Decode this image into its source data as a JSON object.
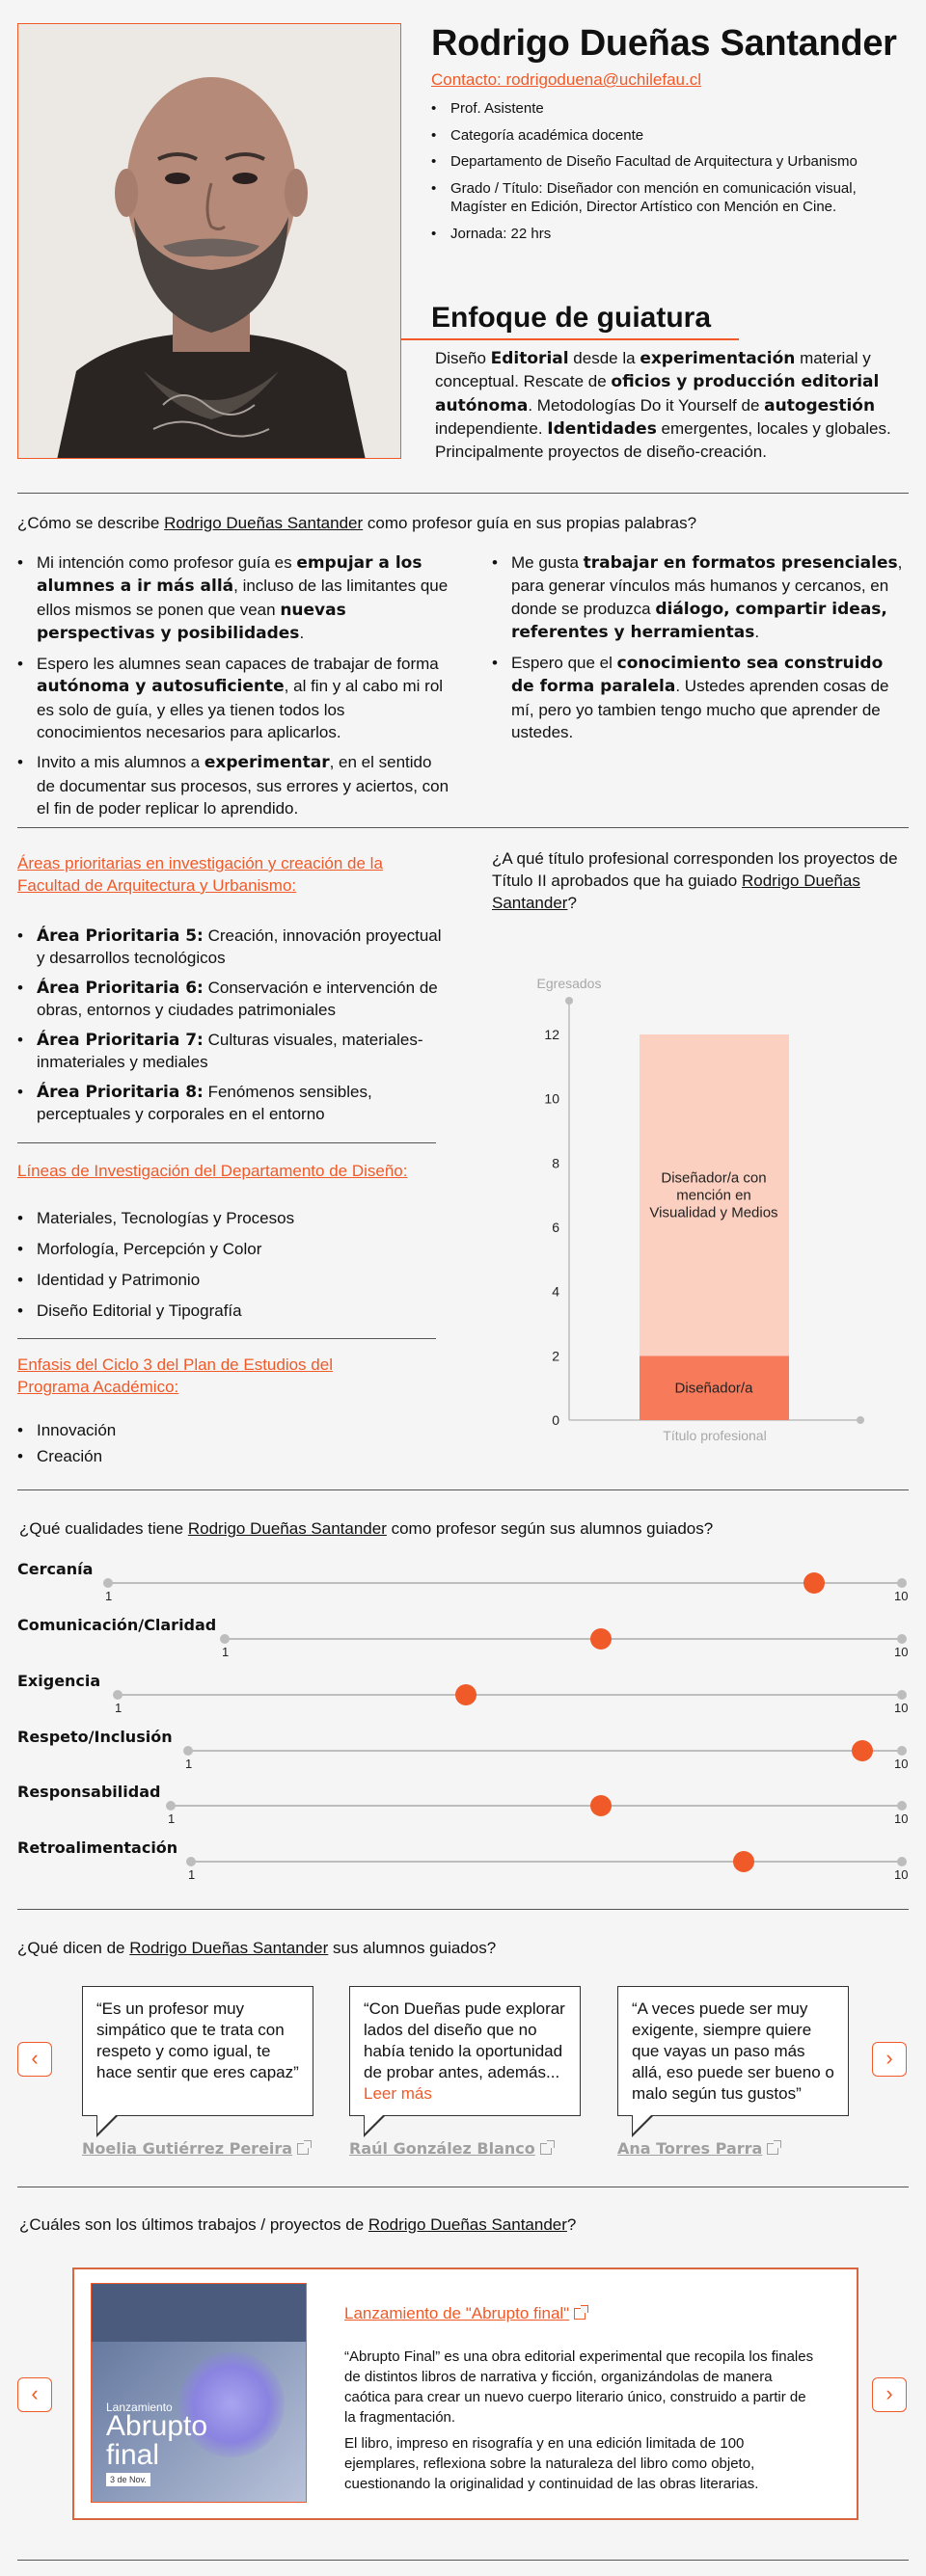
{
  "profile": {
    "name": "Rodrigo Dueñas Santander",
    "contact": "Contacto: rodrigoduena@uchilefau.cl",
    "items": [
      "Prof. Asistente",
      "Categoría académica docente",
      "Departamento de Diseño Facultad de Arquitectura y Urbanismo",
      "Grado / Título: Diseñador con mención en comunicación visual, Magíster en Edición, Director Artístico con Mención en Cine.",
      "Jornada: 22 hrs"
    ]
  },
  "focus": {
    "title": "Enfoque de guiatura",
    "t1": "Diseño ",
    "b1": "Editorial",
    "t2": " desde la ",
    "b2": "experimentación",
    "t3": " material y conceptual. Rescate de ",
    "b3": "oficios y producción editorial autónoma",
    "t4": ". Metodologías Do it Yourself de ",
    "b4": "autogestión",
    "t5": " independiente. ",
    "b5": "Identidades",
    "t6": " emergentes, locales y globales. Principalmente proyectos de diseño-creación."
  },
  "describe": {
    "q_pre": "¿Cómo se describe ",
    "q_name": "Rodrigo Dueñas Santander",
    "q_post": " como profesor guía en sus propias palabras?",
    "l1a": "Mi intención como profesor guía es ",
    "l1b": "empujar a los alumnes a ir más allá",
    "l1c": ", incluso de las limitantes que ellos mismos se ponen que vean ",
    "l1d": "nuevas perspectivas y posibilidades",
    "l1e": ".",
    "l2a": "Espero les alumnes sean capaces de trabajar de forma ",
    "l2b": "autónoma y autosuficiente",
    "l2c": ", al fin y al cabo mi rol es solo de guía, y elles ya tienen todos los conocimientos necesarios para aplicarlos.",
    "l3a": "Invito a mis alumnos a ",
    "l3b": "experimentar",
    "l3c": ", en el sentido de documentar sus procesos, sus errores y aciertos, con el fin de poder replicar lo aprendido.",
    "r1a": "Me gusta ",
    "r1b": "trabajar en formatos presenciales",
    "r1c": ", para generar vínculos más humanos y cercanos, en donde se produzca ",
    "r1d": "diálogo, compartir ideas, referentes y herramientas",
    "r1e": ".",
    "r2a": "Espero que el ",
    "r2b": "conocimiento sea construido de forma paralela",
    "r2c": ". Ustedes aprenden cosas de mí, pero yo tambien tengo mucho que aprender de ustedes."
  },
  "areas": {
    "title": "Áreas prioritarias en investigación y creación de la Facultad de Arquitectura y Urbanismo:",
    "items": [
      {
        "label": "Área Prioritaria 5:",
        "text": " Creación, innovación proyectual y desarrollos tecnológicos"
      },
      {
        "label": "Área Prioritaria 6:",
        "text": " Conservación e intervención de obras, entornos y ciudades patrimoniales"
      },
      {
        "label": "Área Prioritaria 7:",
        "text": " Culturas visuales, materiales-inmateriales y mediales"
      },
      {
        "label": "Área Prioritaria 8:",
        "text": " Fenómenos sensibles, perceptuales y corporales en el entorno"
      }
    ]
  },
  "lineas": {
    "title": "Líneas de Investigación del Departamento de Diseño:",
    "items": [
      "Materiales, Tecnologías y Procesos",
      "Morfología, Percepción y Color",
      "Identidad y Patrimonio",
      "Diseño Editorial y Tipografía"
    ]
  },
  "enfasis": {
    "title": "Enfasis del Ciclo 3 del Plan de Estudios del Programa Académico:",
    "items": [
      "Innovación",
      "Creación"
    ]
  },
  "titulo_q": {
    "pre": "¿A qué título profesional corresponden los proyectos de Título II aprobados que ha guiado ",
    "name": "Rodrigo Dueñas Santander",
    "post": "?"
  },
  "chart_data": {
    "type": "bar",
    "ylabel": "Egresados",
    "xlabel": "Título profesional",
    "ylim": [
      0,
      12
    ],
    "yticks": [
      0,
      2,
      4,
      6,
      8,
      10,
      12
    ],
    "stacked": true,
    "series": [
      {
        "name": "Diseñador/a",
        "value": 2,
        "color": "#f77b5b"
      },
      {
        "name": "Diseñador/a con mención en Visualidad y Medios",
        "value": 10,
        "color": "#fcd0c0"
      }
    ]
  },
  "qualities": {
    "q_pre": "¿Qué cualidades tiene ",
    "q_name": "Rodrigo Dueñas Santander",
    "q_post": " como profesor según sus alumnos guiados?",
    "min": "1",
    "max": "10",
    "items": [
      {
        "label": "Cercanía",
        "value": 9
      },
      {
        "label": "Comunicación/Claridad",
        "value": 6
      },
      {
        "label": "Exigencia",
        "value": 5
      },
      {
        "label": "Respeto/Inclusión",
        "value": 9.5
      },
      {
        "label": "Responsabilidad",
        "value": 6.3
      },
      {
        "label": "Retroalimentación",
        "value": 8
      }
    ]
  },
  "testimonials": {
    "q_pre": "¿Qué dicen de ",
    "q_name": "Rodrigo Dueñas Santander",
    "q_post": " sus alumnos guiados?",
    "items": [
      {
        "quote": "“Es un profesor muy simpático que te trata con respeto y como igual, te hace sentir que eres capaz”",
        "more": "",
        "author": "Noelia Gutiérrez Pereira"
      },
      {
        "quote": "“Con Dueñas pude explorar lados del diseño que no había tenido la oportunidad de probar antes, además...",
        "more": "Leer más",
        "author": "Raúl González Blanco"
      },
      {
        "quote": "“A veces puede ser muy exigente, siempre quiere que vayas un paso más allá, eso puede ser bueno o malo según tus gustos”",
        "more": "",
        "author": "Ana Torres Parra"
      }
    ]
  },
  "projects": {
    "q_pre": "¿Cuáles son los últimos trabajos / proyectos de ",
    "q_name": "Rodrigo Dueñas Santander",
    "q_post": "?",
    "title": "Lanzamiento de \"Abrupto final\"",
    "p1": "“Abrupto Final” es una obra editorial experimental que recopila los finales de distintos libros de narrativa y ficción, organizándolas de manera caótica para crear un nuevo cuerpo literario único, construido a partir de la fragmentación.",
    "p2": "El libro, impreso en risografía y en una edición limitada de 100 ejemplares, reflexiona sobre la naturaleza del libro como objeto, cuestionando la originalidad y continuidad de las obras literarias.",
    "poster": {
      "label": "Lanzamiento",
      "title1": "Abrupto",
      "title2": "final",
      "date": "3 de Nov."
    }
  },
  "colors": {
    "accent": "#f05a28",
    "bar_dark": "#f77b5b",
    "bar_light": "#fcd0c0"
  }
}
